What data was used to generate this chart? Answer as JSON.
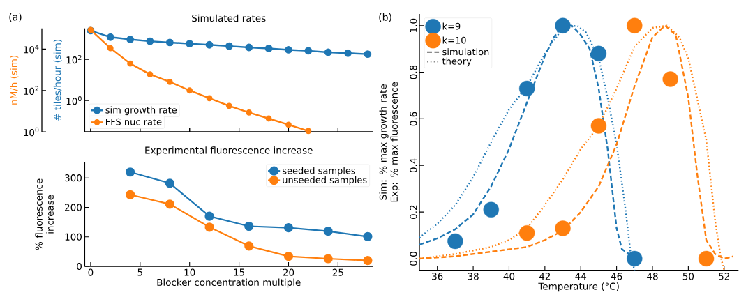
{
  "chart_data": [
    {
      "type": "line",
      "ylabel": "nM/h (sim)",
      "annotations": [
        "(a)"
      ],
      "xlim": [
        -0.6,
        28.5
      ],
      "xticks": [
        0,
        5,
        10,
        15,
        20,
        25
      ],
      "ylim": [
        1,
        100000
      ],
      "yticks": [
        {
          "value": 1,
          "label": "10$^{0}$"
        },
        {
          "value": 100,
          "label": "10$^{2}$"
        },
        {
          "value": 10000,
          "label": "10$^{4}$"
        }
      ],
      "log": true,
      "tick_labels": "y",
      "legend": "bottom left",
      "marker": "circle",
      "series": [
        {
          "name": "FFS nuc rate",
          "color": "#ff7f0e",
          "x": [
            0,
            2,
            4,
            6,
            8,
            10,
            12,
            14,
            16,
            18,
            20,
            22
          ],
          "values": [
            84000,
            11000,
            2000,
            600,
            260,
            100,
            42,
            18,
            8.6,
            4.4,
            2.2,
            1.1
          ]
        }
      ]
    },
    {
      "type": "line",
      "title": "Simulated rates",
      "ylabel": "# tiles/hour (sim)",
      "xlim": [
        -0.6,
        28.5
      ],
      "xticks": [
        0,
        5,
        10,
        15,
        20,
        25
      ],
      "ylim": [
        0.03,
        3200
      ],
      "yticks": [
        {
          "value": 1,
          "label": "10$^{0}$"
        },
        {
          "value": 100,
          "label": "10$^{2}$"
        }
      ],
      "log": true,
      "tick_labels": "y",
      "legend": "bottom left",
      "marker": "circle",
      "series": [
        {
          "name": "sim growth rate",
          "color": "#1f77b4",
          "x": [
            0,
            2,
            4,
            6,
            8,
            10,
            12,
            14,
            16,
            18,
            20,
            22,
            24,
            26,
            28
          ],
          "values": [
            2500,
            1200,
            930,
            760,
            660,
            580,
            510,
            440,
            380,
            340,
            290,
            260,
            220,
            200,
            180
          ]
        }
      ]
    },
    {
      "type": "line",
      "title": "Experimental fluorescence increase",
      "xlabel": "Blocker concentration multiple",
      "ylabel": "% fluorescence increase",
      "x": [
        4,
        8,
        12,
        16,
        20,
        24,
        28
      ],
      "xlim": [
        -0.6,
        28.5
      ],
      "xticks": [
        0,
        5,
        10,
        15,
        20,
        25
      ],
      "ylim": [
        0,
        353
      ],
      "yticks": [
        0,
        100,
        200,
        300
      ],
      "legend": "top right",
      "marker": "circle",
      "series": [
        {
          "name": "seeded samples",
          "color": "#1f77b4",
          "values": [
            320,
            282,
            170,
            136,
            131,
            119,
            101
          ]
        },
        {
          "name": "unseeded samples",
          "color": "#ff7f0e",
          "values": [
            243,
            211,
            133,
            69,
            34,
            26,
            20
          ]
        }
      ]
    },
    {
      "type": "scatter",
      "xlabel": "Temperature (°C)",
      "ylabel": "Sim: % max growth rate Exp: % max fluorescence",
      "annotations": [
        "(b)",
        "simulation",
        "theory"
      ],
      "xlim": [
        35,
        52.8
      ],
      "xticks": [
        36,
        38,
        40,
        42,
        44,
        46,
        48,
        50,
        52
      ],
      "ylim": [
        -0.05,
        1.05
      ],
      "yticks": [
        {
          "value": 0,
          "label": "0.0"
        },
        {
          "value": 0.2,
          "label": "0.2"
        },
        {
          "value": 0.4,
          "label": "0.4"
        },
        {
          "value": 0.6,
          "label": "0.6"
        },
        {
          "value": 0.8,
          "label": "0.8"
        },
        {
          "value": 1,
          "label": "1.0"
        }
      ],
      "legend": "top left",
      "marker": "circle",
      "series": [
        {
          "name": "k=9",
          "color": "#1f77b4",
          "x": [
            37,
            39,
            41,
            43,
            45,
            47
          ],
          "values": [
            0.075,
            0.21,
            0.73,
            1.0,
            0.88,
            0.0
          ]
        },
        {
          "name": "k=10",
          "color": "#ff7f0e",
          "x": [
            41,
            43,
            45,
            47,
            49,
            51
          ],
          "values": [
            0.11,
            0.13,
            0.57,
            1.0,
            0.77,
            0.0
          ]
        },
        {
          "type": "line",
          "marker": "none",
          "line_style": "dashed",
          "color": "#1f77b4",
          "x": [
            35,
            36,
            37,
            38,
            39,
            40,
            41,
            42,
            42.5,
            43,
            43.5,
            44,
            44.5,
            45,
            45.5,
            46,
            46.3,
            46.7,
            47
          ],
          "values": [
            0.06,
            0.087,
            0.126,
            0.19,
            0.31,
            0.47,
            0.67,
            0.87,
            0.95,
            1.0,
            1.0,
            0.96,
            0.9,
            0.73,
            0.47,
            0.13,
            0.04,
            0.02,
            0.0
          ]
        },
        {
          "type": "line",
          "marker": "none",
          "line_style": "dotted",
          "color": "#1f77b4",
          "x": [
            35,
            36,
            37,
            38,
            39,
            40,
            41,
            42,
            43,
            43.8,
            44.3,
            45,
            45.5,
            46,
            46.5,
            46.8,
            47
          ],
          "values": [
            0.09,
            0.15,
            0.23,
            0.35,
            0.5,
            0.64,
            0.74,
            0.88,
            0.99,
            1.0,
            0.97,
            0.86,
            0.69,
            0.49,
            0.21,
            0.01,
            -0.05
          ]
        },
        {
          "type": "line",
          "marker": "none",
          "line_style": "dashed",
          "color": "#ff7f0e",
          "x": [
            35,
            37,
            39,
            41,
            42,
            43,
            44,
            45,
            46,
            47,
            48,
            48.7,
            49.3,
            50,
            50.5,
            51,
            51.5,
            52,
            52.5
          ],
          "values": [
            0.0,
            0.01,
            0.03,
            0.05,
            0.08,
            0.12,
            0.2,
            0.31,
            0.49,
            0.74,
            0.95,
            1.0,
            0.96,
            0.69,
            0.36,
            0.08,
            0.02,
            0.0,
            0.01
          ]
        },
        {
          "type": "line",
          "marker": "none",
          "line_style": "dotted",
          "color": "#ff7f0e",
          "x": [
            35,
            37,
            39,
            40,
            41,
            42,
            43,
            44,
            45,
            46,
            47,
            48,
            48.8,
            49.5,
            50,
            51,
            51.5,
            51.8,
            52
          ],
          "values": [
            0.0,
            0.02,
            0.05,
            0.08,
            0.13,
            0.23,
            0.34,
            0.47,
            0.57,
            0.73,
            0.91,
            0.99,
            1.0,
            0.95,
            0.86,
            0.51,
            0.16,
            0.01,
            -0.05
          ]
        }
      ]
    }
  ]
}
